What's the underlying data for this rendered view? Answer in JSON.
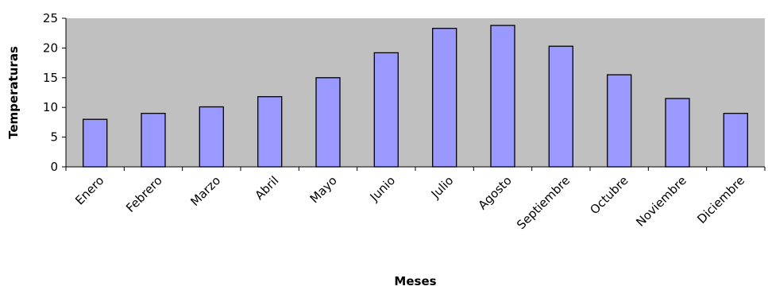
{
  "chart_data": {
    "type": "bar",
    "title": "",
    "xlabel": "Meses",
    "ylabel": "Temperaturas",
    "categories": [
      "Enero",
      "Febrero",
      "Marzo",
      "Abril",
      "Mayo",
      "Junio",
      "Julio",
      "Agosto",
      "Septiembre",
      "Octubre",
      "Noviembre",
      "Diciembre"
    ],
    "values": [
      8.0,
      9.0,
      10.1,
      11.8,
      15.0,
      19.2,
      23.3,
      23.8,
      20.3,
      15.5,
      11.5,
      9.0
    ],
    "ylim": [
      0,
      25
    ],
    "yticks": [
      0,
      5,
      10,
      15,
      20,
      25
    ],
    "grid": false,
    "legend": "none",
    "colors": {
      "plot_background": "#c0c0c0",
      "bar_fill": "#9999ff",
      "bar_stroke": "#000000"
    }
  }
}
